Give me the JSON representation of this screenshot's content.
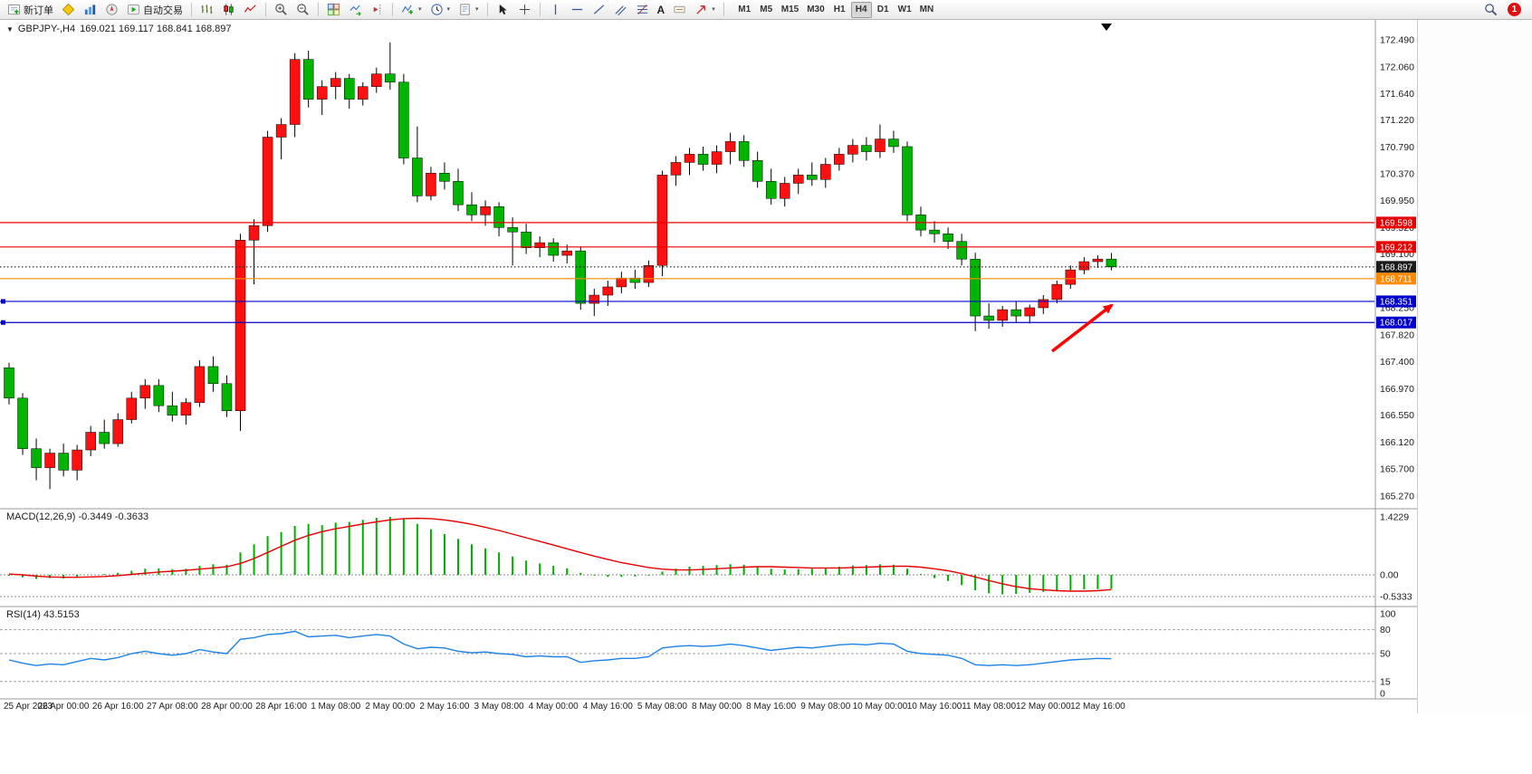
{
  "toolbar": {
    "new_order_label": "新订单",
    "autotrading_label": "自动交易",
    "timeframes": [
      "M1",
      "M5",
      "M15",
      "M30",
      "H1",
      "H4",
      "D1",
      "W1",
      "MN"
    ],
    "active_timeframe": "H4",
    "notification_count": "1"
  },
  "icons": {
    "one_click_glyph": "▼",
    "dropdown_caret_glyph": "▾",
    "text_tool_glyph": "A"
  },
  "legend": {
    "symbol_period": "GBPJPY-,H4",
    "ohlc": "169.021 169.117 168.841 168.897"
  },
  "indicators": {
    "macd_label": "MACD(12,26,9) -0.3449 -0.3633",
    "rsi_label": "RSI(14) 43.5153"
  },
  "colors": {
    "bull_candle": "#fd1010",
    "bear_candle": "#00b400",
    "candle_outline": "#000000",
    "macd_histogram": "#00ae00",
    "macd_signal": "#e60000",
    "rsi_line": "#1e82e6",
    "axis_text": "#1a1a1a"
  },
  "chart_data": {
    "type": "candlestick",
    "symbol": "GBPJPY-",
    "timeframe": "H4",
    "current_bar": {
      "open": 169.021,
      "high": 169.117,
      "low": 168.841,
      "close": 168.897
    },
    "price_axis_labels": [
      "172.490",
      "172.060",
      "171.640",
      "171.220",
      "170.790",
      "170.370",
      "169.950",
      "169.520",
      "169.100",
      "168.680",
      "168.250",
      "167.820",
      "167.400",
      "166.970",
      "166.550",
      "166.120",
      "165.700",
      "165.270"
    ],
    "time_labels": [
      "25 Apr 2023",
      "26 Apr 00:00",
      "26 Apr 16:00",
      "27 Apr 08:00",
      "28 Apr 00:00",
      "28 Apr 16:00",
      "1 May 08:00",
      "2 May 00:00",
      "2 May 16:00",
      "3 May 08:00",
      "4 May 00:00",
      "4 May 16:00",
      "5 May 08:00",
      "8 May 00:00",
      "8 May 16:00",
      "9 May 08:00",
      "10 May 00:00",
      "10 May 16:00",
      "11 May 08:00",
      "12 May 00:00",
      "12 May 16:00"
    ],
    "macd_axis_labels": [
      "1.4229",
      "0.00",
      "-0.5333"
    ],
    "macd_axis_values": [
      1.4229,
      0,
      -0.5333
    ],
    "rsi_axis_labels": [
      "100",
      "80",
      "50",
      "15",
      "0"
    ],
    "rsi_axis_values": [
      100,
      80,
      50,
      15,
      0
    ],
    "rsi_levels": [
      80,
      50,
      15
    ],
    "hlines": [
      {
        "name": "resistance-line-169598",
        "price": 169.598,
        "label": "169.598",
        "color": "#e80000",
        "style": "solid",
        "handle": false
      },
      {
        "name": "resistance-line-169212",
        "price": 169.212,
        "label": "169.212",
        "color": "#e80000",
        "style": "solid",
        "handle": false
      },
      {
        "name": "current-price-line",
        "price": 168.897,
        "label": "168.897",
        "color": "#1a1a1a",
        "style": "dotted",
        "handle": false
      },
      {
        "name": "support-line-orange-168711",
        "price": 168.711,
        "label": "168.711",
        "color": "#ff8a00",
        "style": "solid",
        "handle": false
      },
      {
        "name": "support-line-blue-168351",
        "price": 168.351,
        "label": "168.351",
        "color": "#0000cc",
        "style": "solid",
        "handle": true
      },
      {
        "name": "support-line-blue-168017",
        "price": 168.017,
        "label": "168.017",
        "color": "#0000cc",
        "style": "solid",
        "handle": true
      }
    ],
    "candles_ohlc": [
      [
        167.3,
        167.38,
        166.72,
        166.82
      ],
      [
        166.82,
        166.9,
        165.92,
        166.02
      ],
      [
        166.02,
        166.18,
        165.52,
        165.72
      ],
      [
        165.72,
        166.02,
        165.38,
        165.95
      ],
      [
        165.95,
        166.1,
        165.58,
        165.68
      ],
      [
        165.68,
        166.08,
        165.52,
        166.0
      ],
      [
        166.0,
        166.38,
        165.9,
        166.28
      ],
      [
        166.28,
        166.48,
        166.02,
        166.1
      ],
      [
        166.1,
        166.58,
        166.05,
        166.48
      ],
      [
        166.48,
        166.92,
        166.42,
        166.82
      ],
      [
        166.82,
        167.12,
        166.65,
        167.02
      ],
      [
        167.02,
        167.12,
        166.6,
        166.7
      ],
      [
        166.7,
        166.92,
        166.45,
        166.55
      ],
      [
        166.55,
        166.82,
        166.4,
        166.75
      ],
      [
        166.75,
        167.42,
        166.68,
        167.32
      ],
      [
        167.32,
        167.48,
        166.92,
        167.05
      ],
      [
        167.05,
        167.18,
        166.52,
        166.62
      ],
      [
        166.62,
        169.42,
        166.3,
        169.32
      ],
      [
        169.32,
        169.65,
        168.62,
        169.55
      ],
      [
        169.55,
        171.05,
        169.45,
        170.95
      ],
      [
        170.95,
        171.25,
        170.6,
        171.15
      ],
      [
        171.15,
        172.28,
        170.95,
        172.18
      ],
      [
        172.18,
        172.32,
        171.42,
        171.55
      ],
      [
        171.55,
        171.85,
        171.3,
        171.75
      ],
      [
        171.75,
        171.98,
        171.55,
        171.88
      ],
      [
        171.88,
        171.95,
        171.4,
        171.55
      ],
      [
        171.55,
        171.82,
        171.45,
        171.75
      ],
      [
        171.75,
        172.05,
        171.65,
        171.95
      ],
      [
        171.95,
        172.45,
        171.7,
        171.82
      ],
      [
        171.82,
        171.95,
        170.52,
        170.62
      ],
      [
        170.62,
        171.12,
        169.92,
        170.02
      ],
      [
        170.02,
        170.48,
        169.95,
        170.38
      ],
      [
        170.38,
        170.55,
        170.12,
        170.25
      ],
      [
        170.25,
        170.45,
        169.78,
        169.88
      ],
      [
        169.88,
        170.08,
        169.62,
        169.72
      ],
      [
        169.72,
        169.95,
        169.55,
        169.85
      ],
      [
        169.85,
        169.92,
        169.38,
        169.52
      ],
      [
        169.52,
        169.68,
        168.92,
        169.45
      ],
      [
        169.45,
        169.58,
        169.1,
        169.2
      ],
      [
        169.2,
        169.38,
        169.05,
        169.28
      ],
      [
        169.28,
        169.35,
        168.98,
        169.08
      ],
      [
        169.08,
        169.25,
        168.95,
        169.15
      ],
      [
        169.15,
        169.22,
        168.22,
        168.32
      ],
      [
        168.32,
        168.55,
        168.12,
        168.45
      ],
      [
        168.45,
        168.68,
        168.28,
        168.58
      ],
      [
        168.58,
        168.82,
        168.48,
        168.72
      ],
      [
        168.72,
        168.85,
        168.55,
        168.65
      ],
      [
        168.65,
        169.0,
        168.58,
        168.92
      ],
      [
        168.92,
        170.42,
        168.75,
        170.35
      ],
      [
        170.35,
        170.65,
        170.18,
        170.55
      ],
      [
        170.55,
        170.78,
        170.35,
        170.68
      ],
      [
        170.68,
        170.8,
        170.42,
        170.52
      ],
      [
        170.52,
        170.82,
        170.38,
        170.72
      ],
      [
        170.72,
        171.02,
        170.52,
        170.88
      ],
      [
        170.88,
        170.98,
        170.48,
        170.58
      ],
      [
        170.58,
        170.72,
        170.15,
        170.25
      ],
      [
        170.25,
        170.45,
        169.88,
        169.98
      ],
      [
        169.98,
        170.32,
        169.85,
        170.22
      ],
      [
        170.22,
        170.45,
        170.05,
        170.35
      ],
      [
        170.35,
        170.55,
        170.18,
        170.28
      ],
      [
        170.28,
        170.62,
        170.15,
        170.52
      ],
      [
        170.52,
        170.78,
        170.42,
        170.68
      ],
      [
        170.68,
        170.92,
        170.55,
        170.82
      ],
      [
        170.82,
        170.95,
        170.58,
        170.72
      ],
      [
        170.72,
        171.15,
        170.62,
        170.92
      ],
      [
        170.92,
        171.05,
        170.7,
        170.8
      ],
      [
        170.8,
        170.88,
        169.62,
        169.72
      ],
      [
        169.72,
        169.85,
        169.38,
        169.48
      ],
      [
        169.48,
        169.62,
        169.28,
        169.42
      ],
      [
        169.42,
        169.52,
        169.18,
        169.3
      ],
      [
        169.3,
        169.42,
        168.92,
        169.02
      ],
      [
        169.02,
        169.12,
        167.88,
        168.12
      ],
      [
        168.12,
        168.32,
        167.92,
        168.05
      ],
      [
        168.05,
        168.28,
        167.95,
        168.22
      ],
      [
        168.22,
        168.35,
        168.02,
        168.12
      ],
      [
        168.12,
        168.3,
        168.0,
        168.25
      ],
      [
        168.25,
        168.45,
        168.15,
        168.38
      ],
      [
        168.38,
        168.68,
        168.32,
        168.62
      ],
      [
        168.62,
        168.92,
        168.55,
        168.85
      ],
      [
        168.85,
        169.05,
        168.78,
        168.98
      ],
      [
        168.98,
        169.08,
        168.88,
        169.021
      ],
      [
        169.021,
        169.117,
        168.841,
        168.897
      ]
    ],
    "macd_histogram": [
      -0.02,
      -0.06,
      -0.1,
      -0.08,
      -0.09,
      -0.05,
      0.0,
      0.02,
      0.05,
      0.1,
      0.15,
      0.16,
      0.14,
      0.15,
      0.22,
      0.26,
      0.25,
      0.55,
      0.75,
      0.95,
      1.05,
      1.2,
      1.25,
      1.22,
      1.28,
      1.3,
      1.35,
      1.4,
      1.4229,
      1.38,
      1.25,
      1.12,
      1.0,
      0.88,
      0.75,
      0.65,
      0.55,
      0.45,
      0.35,
      0.28,
      0.22,
      0.16,
      0.05,
      -0.02,
      -0.05,
      -0.05,
      -0.04,
      -0.02,
      0.08,
      0.15,
      0.2,
      0.22,
      0.24,
      0.26,
      0.25,
      0.2,
      0.15,
      0.13,
      0.14,
      0.15,
      0.17,
      0.2,
      0.23,
      0.24,
      0.26,
      0.25,
      0.15,
      0.02,
      -0.08,
      -0.15,
      -0.25,
      -0.38,
      -0.45,
      -0.48,
      -0.47,
      -0.44,
      -0.42,
      -0.4,
      -0.38,
      -0.36,
      -0.35,
      -0.3449
    ],
    "macd_signal": [
      0.02,
      0.0,
      -0.03,
      -0.05,
      -0.06,
      -0.06,
      -0.05,
      -0.04,
      -0.02,
      0.01,
      0.04,
      0.07,
      0.09,
      0.11,
      0.14,
      0.17,
      0.2,
      0.28,
      0.4,
      0.55,
      0.7,
      0.85,
      0.97,
      1.06,
      1.13,
      1.19,
      1.25,
      1.3,
      1.35,
      1.38,
      1.39,
      1.38,
      1.35,
      1.3,
      1.24,
      1.17,
      1.09,
      1.0,
      0.91,
      0.82,
      0.73,
      0.64,
      0.55,
      0.46,
      0.38,
      0.3,
      0.24,
      0.18,
      0.14,
      0.12,
      0.12,
      0.13,
      0.15,
      0.17,
      0.19,
      0.2,
      0.2,
      0.19,
      0.18,
      0.17,
      0.17,
      0.17,
      0.18,
      0.19,
      0.2,
      0.21,
      0.21,
      0.19,
      0.15,
      0.1,
      0.03,
      -0.05,
      -0.14,
      -0.22,
      -0.29,
      -0.34,
      -0.37,
      -0.39,
      -0.4,
      -0.4,
      -0.39,
      -0.3633
    ],
    "rsi_values": [
      42,
      38,
      35,
      37,
      36,
      40,
      44,
      42,
      45,
      50,
      53,
      50,
      48,
      50,
      55,
      52,
      50,
      68,
      70,
      74,
      75,
      78,
      71,
      72,
      73,
      70,
      72,
      74,
      72,
      62,
      56,
      58,
      57,
      53,
      51,
      52,
      50,
      49,
      46,
      47,
      46,
      46,
      39,
      41,
      42,
      44,
      44,
      46,
      57,
      59,
      60,
      59,
      60,
      62,
      60,
      57,
      54,
      56,
      58,
      57,
      59,
      61,
      62,
      61,
      63,
      62,
      53,
      50,
      49,
      48,
      44,
      36,
      35,
      36,
      35,
      36,
      38,
      40,
      42,
      43,
      44,
      43.5153
    ]
  }
}
